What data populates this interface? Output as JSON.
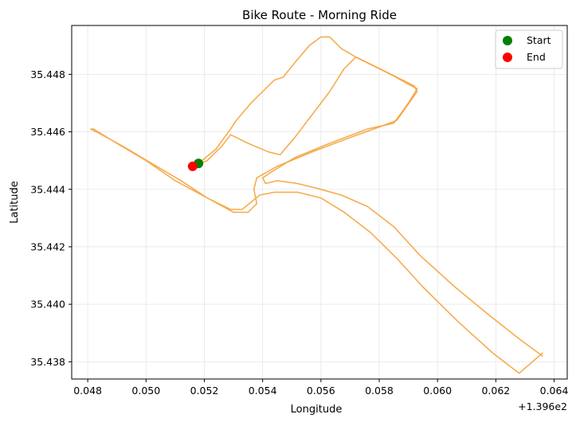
{
  "chart_data": {
    "type": "line",
    "title": "Bike Route - Morning Ride",
    "xlabel": "Longitude",
    "ylabel": "Latitude",
    "x_offset_label": "+1.396e2",
    "x_offset": 139.6,
    "xlim": [
      0.04745,
      0.06445
    ],
    "ylim": [
      35.4374,
      35.4497
    ],
    "xticks": [
      0.048,
      0.05,
      0.052,
      0.054,
      0.056,
      0.058,
      0.06,
      0.062,
      0.064
    ],
    "xtick_labels": [
      "0.048",
      "0.050",
      "0.052",
      "0.054",
      "0.056",
      "0.058",
      "0.060",
      "0.062",
      "0.064"
    ],
    "yticks": [
      35.438,
      35.44,
      35.442,
      35.444,
      35.446,
      35.448
    ],
    "ytick_labels": [
      "35.438",
      "35.440",
      "35.442",
      "35.444",
      "35.446",
      "35.448"
    ],
    "grid": true,
    "legend_position": "top-right",
    "route_color": "#F5A33C",
    "series": [
      {
        "values": [
          [
            0.0518,
            35.4449
          ],
          [
            0.0524,
            35.4454
          ],
          [
            0.0529,
            35.4461
          ],
          [
            0.0531,
            35.4464
          ],
          [
            0.0536,
            35.447
          ],
          [
            0.0541,
            35.4475
          ],
          [
            0.0544,
            35.4478
          ],
          [
            0.0547,
            35.4479
          ],
          [
            0.0551,
            35.4484
          ],
          [
            0.0556,
            35.449
          ],
          [
            0.056,
            35.4493
          ],
          [
            0.0563,
            35.4493
          ],
          [
            0.0567,
            35.4489
          ],
          [
            0.0572,
            35.4486
          ],
          [
            0.0592,
            35.4476
          ],
          [
            0.0593,
            35.4474
          ],
          [
            0.0586,
            35.4464
          ],
          [
            0.0581,
            35.4462
          ],
          [
            0.057,
            35.4458
          ],
          [
            0.0557,
            35.4453
          ],
          [
            0.0545,
            35.4448
          ],
          [
            0.0538,
            35.4444
          ],
          [
            0.0537,
            35.444
          ],
          [
            0.0538,
            35.4435
          ],
          [
            0.0535,
            35.4432
          ],
          [
            0.053,
            35.4432
          ],
          [
            0.0521,
            35.4437
          ],
          [
            0.051,
            35.4443
          ],
          [
            0.05,
            35.445
          ],
          [
            0.049,
            35.4456
          ],
          [
            0.0482,
            35.4461
          ],
          [
            0.0481,
            35.4461
          ],
          [
            0.0483,
            35.446
          ],
          [
            0.0492,
            35.4455
          ],
          [
            0.0502,
            35.4449
          ],
          [
            0.0512,
            35.4443
          ],
          [
            0.0521,
            35.4437
          ],
          [
            0.0529,
            35.4433
          ],
          [
            0.0533,
            35.4433
          ],
          [
            0.0539,
            35.4438
          ],
          [
            0.0544,
            35.4439
          ],
          [
            0.0552,
            35.4439
          ],
          [
            0.056,
            35.4437
          ],
          [
            0.0568,
            35.4432
          ],
          [
            0.0577,
            35.4425
          ],
          [
            0.0586,
            35.4416
          ],
          [
            0.0595,
            35.4406
          ],
          [
            0.0607,
            35.4394
          ],
          [
            0.0619,
            35.4383
          ],
          [
            0.0628,
            35.4376
          ],
          [
            0.0636,
            35.4383
          ]
        ]
      },
      {
        "values": [
          [
            0.0636,
            35.4382
          ],
          [
            0.0628,
            35.4388
          ],
          [
            0.0618,
            35.4396
          ],
          [
            0.0606,
            35.4406
          ],
          [
            0.0594,
            35.4417
          ],
          [
            0.0585,
            35.4427
          ],
          [
            0.0576,
            35.4434
          ],
          [
            0.0567,
            35.4438
          ],
          [
            0.056,
            35.444
          ],
          [
            0.0552,
            35.4442
          ],
          [
            0.0545,
            35.4443
          ],
          [
            0.0541,
            35.4442
          ],
          [
            0.054,
            35.4444
          ],
          [
            0.0543,
            35.4446
          ],
          [
            0.0551,
            35.4451
          ],
          [
            0.0563,
            35.4456
          ],
          [
            0.0576,
            35.4461
          ],
          [
            0.0585,
            35.4463
          ],
          [
            0.059,
            35.447
          ],
          [
            0.0593,
            35.4475
          ],
          [
            0.0591,
            35.4476
          ],
          [
            0.0584,
            35.448
          ],
          [
            0.0576,
            35.4484
          ],
          [
            0.0572,
            35.4486
          ],
          [
            0.0568,
            35.4482
          ],
          [
            0.0563,
            35.4474
          ],
          [
            0.0557,
            35.4466
          ],
          [
            0.0551,
            35.4458
          ],
          [
            0.0546,
            35.4452
          ],
          [
            0.0542,
            35.4453
          ],
          [
            0.0535,
            35.4456
          ],
          [
            0.0529,
            35.4459
          ],
          [
            0.0526,
            35.4455
          ],
          [
            0.0521,
            35.445
          ],
          [
            0.0516,
            35.4448
          ]
        ]
      }
    ],
    "start": {
      "label": "Start",
      "lon": 0.0518,
      "lat": 35.4449,
      "color": "#008000"
    },
    "end": {
      "label": "End",
      "lon": 0.0516,
      "lat": 35.4448,
      "color": "#FF0000"
    }
  }
}
